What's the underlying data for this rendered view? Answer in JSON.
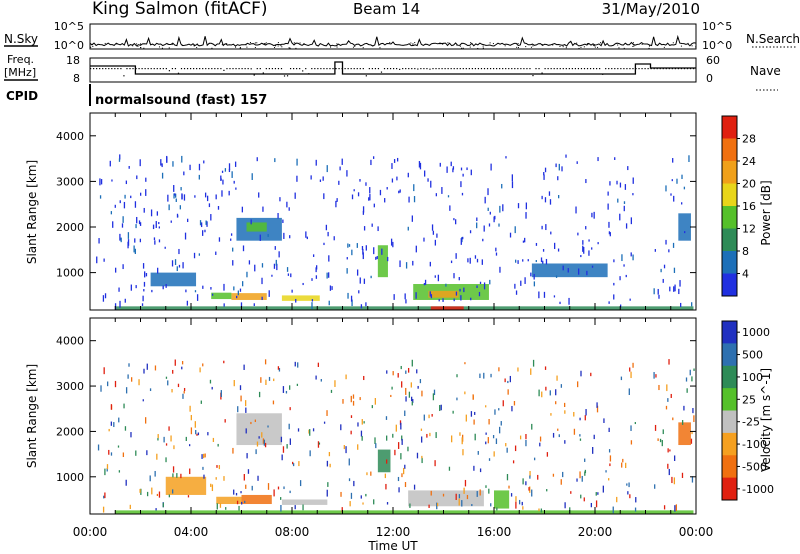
{
  "header": {
    "station": "King Salmon (fitACF)",
    "beam": "Beam 14",
    "date": "31/May/2010"
  },
  "noise_panel": {
    "left_label": "N.Sky",
    "right_label": "N.Search",
    "tick_top": "10^5",
    "tick_bottom": "10^0"
  },
  "freq_panel": {
    "left_label_1": "Freq.",
    "left_label_2": "[MHz]",
    "right_label": "Nave",
    "left_ticks": [
      "18",
      "8"
    ],
    "right_ticks": [
      "60",
      "0"
    ]
  },
  "cpid": {
    "label": "CPID",
    "value": "normalsound (fast) 157"
  },
  "chart_data": [
    {
      "type": "heatmap",
      "title": "",
      "ylabel": "Slant Range [km]",
      "xlabel": "",
      "x_range_hours": [
        0,
        24
      ],
      "ylim": [
        180,
        4500
      ],
      "y_ticks": [
        "1000",
        "2000",
        "3000",
        "4000"
      ],
      "colorbar": {
        "label": "Power [dB]",
        "ticks": [
          "4",
          "8",
          "12",
          "16",
          "20",
          "24",
          "28"
        ],
        "colors": [
          "#2030e0",
          "#1c6fb8",
          "#2e8b57",
          "#55c02a",
          "#e8d51a",
          "#f0a01a",
          "#f07010",
          "#e02010"
        ]
      },
      "echo_regions": [
        {
          "t0": 1.0,
          "t1": 23.9,
          "r0": 180,
          "r1": 260,
          "level": 2
        },
        {
          "t0": 13.5,
          "t1": 14.8,
          "r0": 180,
          "r1": 260,
          "level": 7
        },
        {
          "t0": 5.6,
          "t1": 7.0,
          "r0": 400,
          "r1": 550,
          "level": 5
        },
        {
          "t0": 7.6,
          "t1": 9.1,
          "r0": 380,
          "r1": 500,
          "level": 4
        },
        {
          "t0": 4.8,
          "t1": 5.6,
          "r0": 420,
          "r1": 560,
          "level": 3
        },
        {
          "t0": 12.8,
          "t1": 15.8,
          "r0": 400,
          "r1": 750,
          "level": 3
        },
        {
          "t0": 13.4,
          "t1": 14.6,
          "r0": 450,
          "r1": 600,
          "level": 5
        },
        {
          "t0": 5.8,
          "t1": 7.6,
          "r0": 1700,
          "r1": 2200,
          "level": 1
        },
        {
          "t0": 6.2,
          "t1": 7.0,
          "r0": 1900,
          "r1": 2100,
          "level": 3
        },
        {
          "t0": 2.4,
          "t1": 4.2,
          "r0": 700,
          "r1": 1000,
          "level": 1
        },
        {
          "t0": 11.4,
          "t1": 11.8,
          "r0": 900,
          "r1": 1600,
          "level": 3
        },
        {
          "t0": 17.5,
          "t1": 20.5,
          "r0": 900,
          "r1": 1200,
          "level": 1
        },
        {
          "t0": 23.3,
          "t1": 23.8,
          "r0": 1700,
          "r1": 2300,
          "level": 1
        }
      ]
    },
    {
      "type": "heatmap",
      "title": "",
      "ylabel": "Slant Range [km]",
      "xlabel": "Time UT",
      "x_ticks": [
        "00:00",
        "04:00",
        "08:00",
        "12:00",
        "16:00",
        "20:00",
        "00:00"
      ],
      "x_range_hours": [
        0,
        24
      ],
      "ylim": [
        180,
        4500
      ],
      "y_ticks": [
        "1000",
        "2000",
        "3000",
        "4000"
      ],
      "colorbar": {
        "label": "Velocity [m s^-1]",
        "ticks": [
          "1000",
          "500",
          "100",
          "25",
          "-25",
          "-100",
          "-500",
          "-1000"
        ],
        "colors": [
          "#2030c0",
          "#2e70b0",
          "#2e8b57",
          "#55c02a",
          "#c0c0c0",
          "#f5a020",
          "#f07010",
          "#e02010"
        ]
      },
      "echo_regions": [
        {
          "t0": 5.0,
          "t1": 6.0,
          "r0": 400,
          "r1": 560,
          "level": 5
        },
        {
          "t0": 6.0,
          "t1": 7.2,
          "r0": 400,
          "r1": 600,
          "level": 6
        },
        {
          "t0": 7.6,
          "t1": 9.4,
          "r0": 380,
          "r1": 500,
          "level": 4
        },
        {
          "t0": 3.0,
          "t1": 4.6,
          "r0": 600,
          "r1": 1000,
          "level": 5
        },
        {
          "t0": 5.8,
          "t1": 7.6,
          "r0": 1700,
          "r1": 2400,
          "level": 4
        },
        {
          "t0": 12.6,
          "t1": 15.6,
          "r0": 350,
          "r1": 700,
          "level": 4
        },
        {
          "t0": 11.4,
          "t1": 11.9,
          "r0": 1100,
          "r1": 1600,
          "level": 2
        },
        {
          "t0": 1.0,
          "t1": 23.9,
          "r0": 180,
          "r1": 260,
          "level": 3
        },
        {
          "t0": 23.3,
          "t1": 23.8,
          "r0": 1700,
          "r1": 2200,
          "level": 6
        },
        {
          "t0": 16.0,
          "t1": 16.6,
          "r0": 300,
          "r1": 700,
          "level": 3
        }
      ]
    }
  ]
}
